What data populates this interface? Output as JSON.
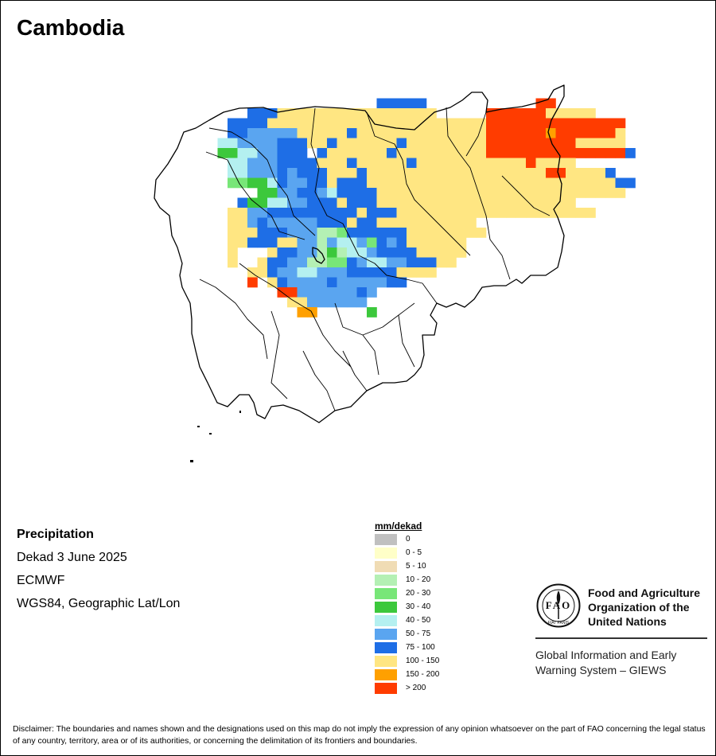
{
  "title": "Cambodia",
  "info": {
    "variable": "Precipitation",
    "period": "Dekad 3 June 2025",
    "source": "ECMWF",
    "projection": "WGS84, Geographic Lat/Lon"
  },
  "legend": {
    "title": "mm/dekad",
    "classes": [
      {
        "label": "0",
        "color": "#c0c0c0"
      },
      {
        "label": "0 - 5",
        "color": "#ffffc8"
      },
      {
        "label": "5 - 10",
        "color": "#f0dcb4"
      },
      {
        "label": "10 - 20",
        "color": "#b4f0b4"
      },
      {
        "label": "20 - 30",
        "color": "#78e678"
      },
      {
        "label": "30 - 40",
        "color": "#3cc83c"
      },
      {
        "label": "40 - 50",
        "color": "#b4f0f0"
      },
      {
        "label": "50 - 75",
        "color": "#5aa5f0"
      },
      {
        "label": "75 - 100",
        "color": "#1e6ee6"
      },
      {
        "label": "100 - 150",
        "color": "#ffe682"
      },
      {
        "label": "150 - 200",
        "color": "#ffa000"
      },
      {
        "label": "> 200",
        "color": "#ff3c00"
      }
    ]
  },
  "organization": {
    "name_line1": "Food and Agriculture",
    "name_line2": "Organization of the",
    "name_line3": "United Nations",
    "logo_letters": "FAO",
    "logo_motto": "FIAT PANIS",
    "system_line1": "Global Information and Early",
    "system_line2": "Warning System – GIEWS"
  },
  "disclaimer": "Disclaimer: The boundaries and names shown and the designations used on this map do not imply the expression of any opinion whatsoever on the part of FAO concerning the legal status of any country, territory, area or of its authorities, or concerning the delimitation of its frontiers and boundaries.",
  "grid": {
    "classes": "0123456789ab",
    "rows": [
      "......................................................................",
      ".......................88888...........bb.....................",
      "..........8889999999999999999.....bbbbbb99999.....................",
      "........88889999999999999999999999bbbbbbbbbbbbbb.................",
      "........88777779999989999999999999bbbbbbabbbbbb9.................",
      ".......667777888998999999899999999bbbbbbbbb99999.................",
      ".......556677888.89999998999999999bbbbbbbbbbbbbb8...............",
      "........667778888999899999899999999999b9999.......................",
      "........66777878889998999999999999999999bb99998................",
      "........44556877889888999999999999999999999999988.................",
      "........ccc5577887688889999999999999999999999999...........",
      "........c8556677888988899999999999999999999...............",
      "........9977888888888988899999999999999999999...............",
      "........9978777778889889999999999.....................",
      "........99988877733488888899999999..................",
      "........998889977376674878999999.......................",
      "........9ccc98877353667888899999.....................",
      "........9cc98877334487667788899..............",
      "........cc9987766777888889999.......................",
      "..........b.98777787777788...................",
      "..........cc.bb77777787..............",
      "...........cc.99777777..............",
      "...............aa.....5..........."
    ]
  }
}
